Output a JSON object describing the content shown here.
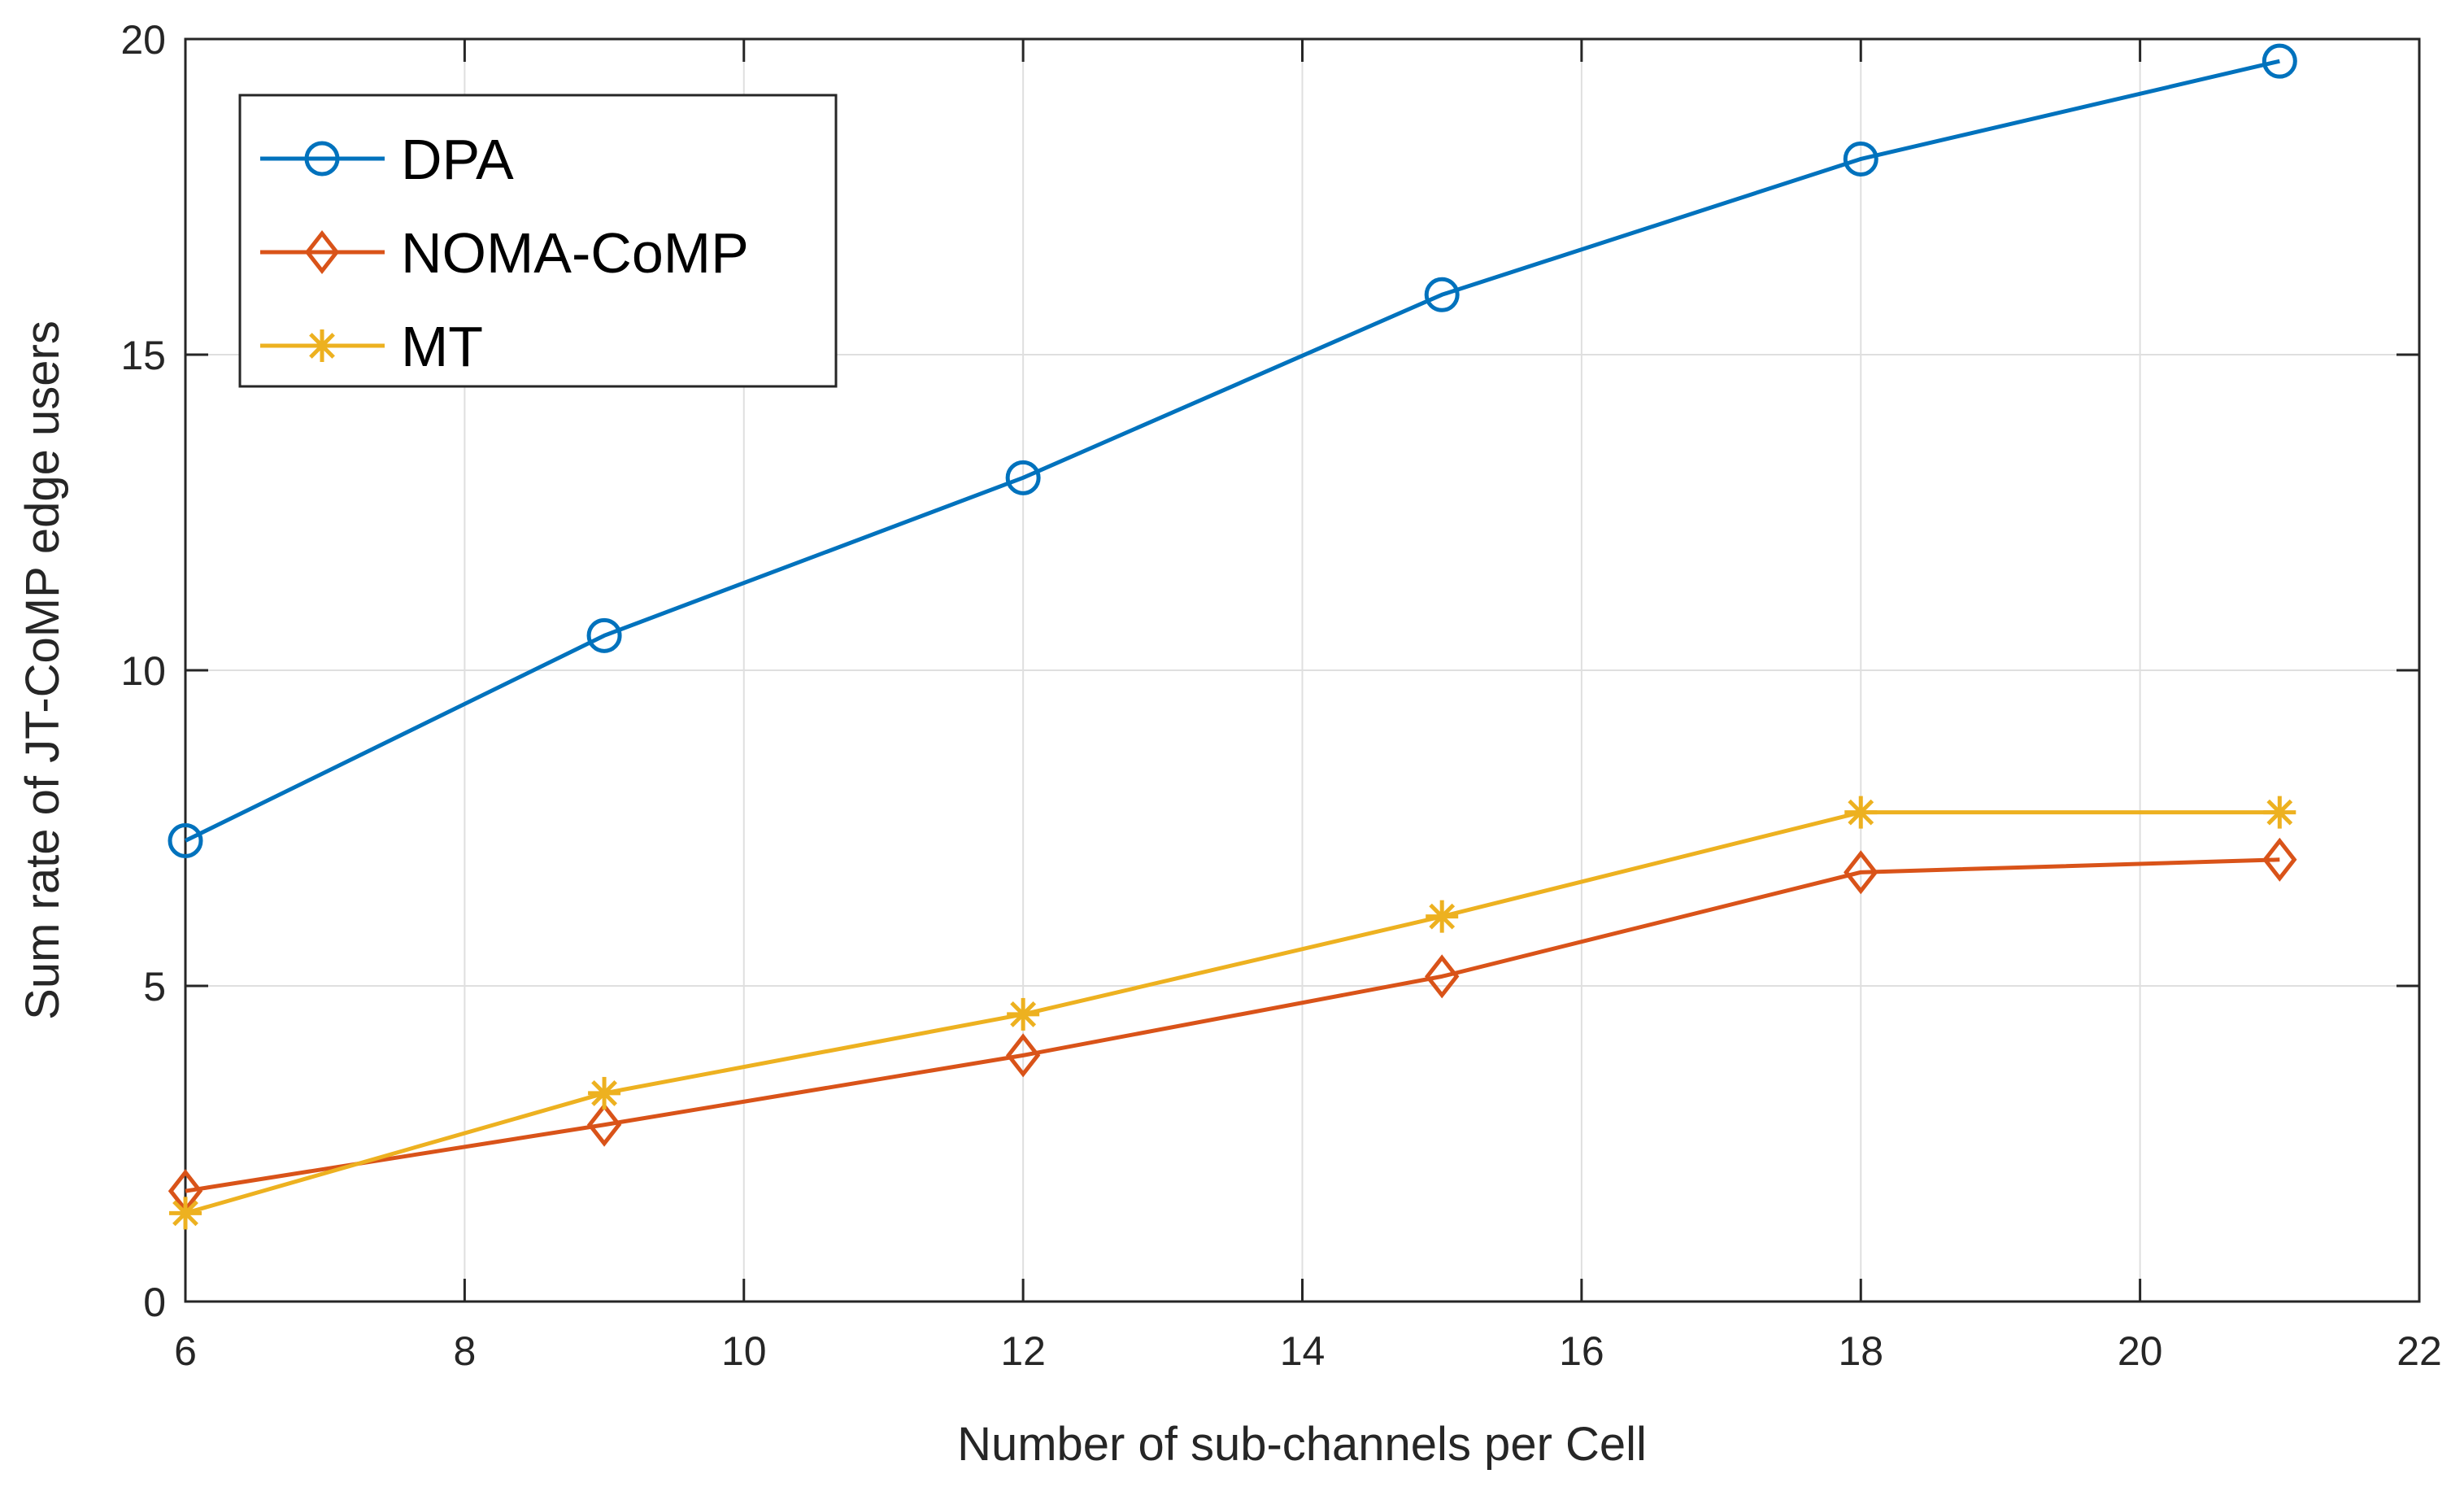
{
  "chart_data": {
    "type": "line",
    "title": "",
    "xlabel": "Number of sub-channels per Cell",
    "ylabel": "Sum rate of JT-CoMP edge users",
    "xlim": [
      6,
      22
    ],
    "ylim": [
      0,
      20
    ],
    "xticks": [
      6,
      8,
      10,
      12,
      14,
      16,
      18,
      20,
      22
    ],
    "yticks": [
      0,
      5,
      10,
      15,
      20
    ],
    "grid": true,
    "legend_position": "top-left",
    "x": [
      6,
      9,
      12,
      15,
      18,
      21
    ],
    "series": [
      {
        "name": "DPA",
        "marker": "circle",
        "color": "#0072BD",
        "values": [
          7.3,
          10.55,
          13.05,
          15.95,
          18.1,
          19.65
        ]
      },
      {
        "name": "NOMA-CoMP",
        "marker": "diamond",
        "color": "#D95319",
        "values": [
          1.75,
          2.8,
          3.9,
          5.15,
          6.8,
          7.0
        ]
      },
      {
        "name": "MT",
        "marker": "asterisk",
        "color": "#EDB120",
        "values": [
          1.4,
          3.3,
          4.55,
          6.1,
          7.75,
          7.75
        ]
      }
    ]
  }
}
